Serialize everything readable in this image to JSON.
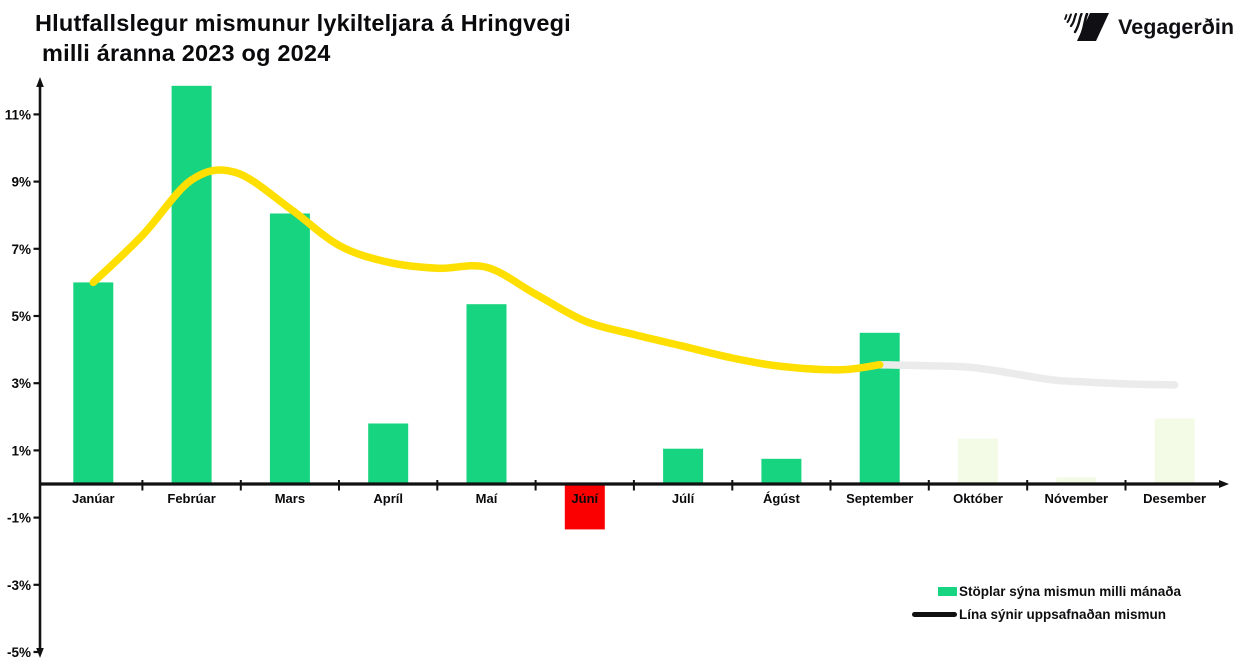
{
  "header": {
    "title_line1": "Hlutfallslegur mismunur lykilteljara á Hringvegi",
    "title_line2": "milli áranna 2023 og 2024"
  },
  "logo": {
    "text": "Vegagerðin",
    "icon": "vegagerdin-stripes-icon"
  },
  "legend": {
    "bars_label": "Stöplar sýna mismun milli mánaða",
    "line_label": "Lína sýnir uppsafnaðan mismun"
  },
  "chart_data": {
    "type": "bar",
    "title": "Hlutfallslegur mismunur lykilteljara á Hringvegi milli áranna 2023 og 2024",
    "categories": [
      "Janúar",
      "Febrúar",
      "Mars",
      "Apríl",
      "Maí",
      "Júní",
      "Júlí",
      "Ágúst",
      "September",
      "Október",
      "Nóvember",
      "Desember"
    ],
    "series": [
      {
        "name": "Stöplar sýna mismun milli mánaða",
        "type": "bar",
        "values": [
          6.0,
          11.85,
          8.05,
          1.8,
          5.35,
          -1.35,
          1.05,
          0.75,
          4.5,
          1.35,
          0.2,
          1.95
        ],
        "styles": [
          "solid",
          "solid",
          "solid",
          "solid",
          "solid",
          "negative",
          "solid",
          "solid",
          "solid",
          "faded",
          "faded",
          "faded"
        ]
      },
      {
        "name": "Lína sýnir uppsafnaðan mismun",
        "type": "line",
        "values": [
          6.0,
          9.05,
          8.2,
          6.6,
          6.45,
          4.85,
          4.1,
          3.5,
          3.55,
          3.45,
          3.05,
          2.95
        ],
        "peak_value": 9.27,
        "solid_until_category": "September",
        "path_solid": [
          [
            0,
            6.0
          ],
          [
            0.5,
            7.4
          ],
          [
            1,
            9.05
          ],
          [
            1.45,
            9.27
          ],
          [
            2,
            8.2
          ],
          [
            2.5,
            7.1
          ],
          [
            3,
            6.6
          ],
          [
            3.5,
            6.42
          ],
          [
            4,
            6.45
          ],
          [
            4.5,
            5.65
          ],
          [
            5,
            4.85
          ],
          [
            5.5,
            4.45
          ],
          [
            6,
            4.1
          ],
          [
            6.5,
            3.75
          ],
          [
            7,
            3.5
          ],
          [
            7.6,
            3.4
          ],
          [
            8,
            3.55
          ]
        ],
        "path_faded": [
          [
            8,
            3.55
          ],
          [
            8.5,
            3.52
          ],
          [
            9,
            3.45
          ],
          [
            9.7,
            3.12
          ],
          [
            10,
            3.05
          ],
          [
            10.5,
            2.98
          ],
          [
            11,
            2.95
          ]
        ]
      }
    ],
    "y_ticks": [
      11,
      9,
      7,
      5,
      3,
      1,
      -1,
      -3,
      -5
    ],
    "y_tick_suffix": "%",
    "ylim": [
      -5,
      12
    ],
    "grid": false,
    "legend_position": "bottom-right",
    "colors": {
      "bar_green": "#16D47F",
      "bar_faded": "#F3FAE6",
      "bar_negative": "#FB0000",
      "line_solid": "#FFDF00",
      "line_faded": "#EBEBEB",
      "legend_line_swatch": "#111111",
      "axis": "#111111",
      "text": "#0a0a0c"
    }
  }
}
